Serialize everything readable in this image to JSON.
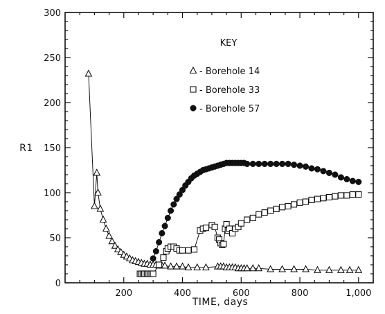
{
  "chart_data": {
    "type": "scatter",
    "title": "",
    "xlabel": "TIME, days",
    "ylabel": "R1",
    "xlim": [
      0,
      1050
    ],
    "ylim": [
      0,
      300
    ],
    "x_ticks": [
      200,
      400,
      600,
      800,
      1000
    ],
    "x_tick_labels": [
      "200",
      "400",
      "600",
      "800",
      "1,000"
    ],
    "y_ticks": [
      0,
      50,
      100,
      150,
      200,
      250,
      300
    ],
    "y_tick_labels": [
      "0",
      "50",
      "100",
      "150",
      "200",
      "250",
      "300"
    ],
    "grid": false,
    "legend": {
      "title": "KEY",
      "position": "top-right",
      "entries": [
        "- Borehole  14",
        "- Borehole  33",
        "- Borehole  57"
      ]
    },
    "series": [
      {
        "name": "Borehole 14",
        "marker": "triangle-open",
        "points": [
          [
            80,
            232
          ],
          [
            100,
            85
          ],
          [
            108,
            122
          ],
          [
            112,
            100
          ],
          [
            120,
            82
          ],
          [
            130,
            70
          ],
          [
            140,
            60
          ],
          [
            150,
            52
          ],
          [
            160,
            46
          ],
          [
            170,
            41
          ],
          [
            180,
            37
          ],
          [
            190,
            34
          ],
          [
            200,
            31
          ],
          [
            210,
            29
          ],
          [
            220,
            27
          ],
          [
            230,
            25
          ],
          [
            240,
            24
          ],
          [
            250,
            23
          ],
          [
            260,
            22
          ],
          [
            270,
            21
          ],
          [
            280,
            21
          ],
          [
            290,
            20
          ],
          [
            300,
            20
          ],
          [
            310,
            20
          ],
          [
            320,
            19
          ],
          [
            330,
            19
          ],
          [
            340,
            19
          ],
          [
            360,
            18
          ],
          [
            380,
            18
          ],
          [
            400,
            18
          ],
          [
            420,
            17
          ],
          [
            450,
            17
          ],
          [
            480,
            17
          ],
          [
            520,
            18
          ],
          [
            530,
            18
          ],
          [
            540,
            18
          ],
          [
            550,
            17
          ],
          [
            560,
            17
          ],
          [
            570,
            17
          ],
          [
            580,
            17
          ],
          [
            590,
            16
          ],
          [
            600,
            16
          ],
          [
            610,
            16
          ],
          [
            620,
            16
          ],
          [
            640,
            16
          ],
          [
            660,
            16
          ],
          [
            700,
            15
          ],
          [
            740,
            15
          ],
          [
            780,
            15
          ],
          [
            820,
            15
          ],
          [
            860,
            14
          ],
          [
            900,
            14
          ],
          [
            940,
            14
          ],
          [
            970,
            14
          ],
          [
            1000,
            14
          ]
        ]
      },
      {
        "name": "Borehole 33",
        "marker": "square-open",
        "points": [
          [
            255,
            10
          ],
          [
            260,
            10
          ],
          [
            265,
            10
          ],
          [
            270,
            10
          ],
          [
            275,
            10
          ],
          [
            280,
            10
          ],
          [
            285,
            10
          ],
          [
            290,
            10
          ],
          [
            295,
            10
          ],
          [
            300,
            10
          ],
          [
            320,
            20
          ],
          [
            335,
            28
          ],
          [
            345,
            35
          ],
          [
            350,
            38
          ],
          [
            360,
            40
          ],
          [
            370,
            40
          ],
          [
            380,
            38
          ],
          [
            390,
            36
          ],
          [
            400,
            36
          ],
          [
            420,
            36
          ],
          [
            440,
            37
          ],
          [
            460,
            58
          ],
          [
            470,
            60
          ],
          [
            480,
            61
          ],
          [
            500,
            64
          ],
          [
            510,
            62
          ],
          [
            520,
            50
          ],
          [
            525,
            48
          ],
          [
            530,
            44
          ],
          [
            535,
            42
          ],
          [
            540,
            43
          ],
          [
            545,
            60
          ],
          [
            550,
            65
          ],
          [
            555,
            58
          ],
          [
            560,
            60
          ],
          [
            570,
            55
          ],
          [
            580,
            60
          ],
          [
            590,
            62
          ],
          [
            600,
            66
          ],
          [
            620,
            70
          ],
          [
            640,
            72
          ],
          [
            660,
            76
          ],
          [
            680,
            78
          ],
          [
            700,
            80
          ],
          [
            720,
            82
          ],
          [
            740,
            84
          ],
          [
            760,
            85
          ],
          [
            780,
            87
          ],
          [
            800,
            89
          ],
          [
            820,
            90
          ],
          [
            840,
            92
          ],
          [
            860,
            93
          ],
          [
            880,
            94
          ],
          [
            900,
            95
          ],
          [
            920,
            96
          ],
          [
            940,
            97
          ],
          [
            960,
            97
          ],
          [
            980,
            98
          ],
          [
            1000,
            98
          ]
        ]
      },
      {
        "name": "Borehole 57",
        "marker": "circle-filled",
        "points": [
          [
            300,
            27
          ],
          [
            310,
            35
          ],
          [
            320,
            45
          ],
          [
            330,
            55
          ],
          [
            340,
            63
          ],
          [
            350,
            72
          ],
          [
            360,
            80
          ],
          [
            370,
            87
          ],
          [
            380,
            93
          ],
          [
            390,
            98
          ],
          [
            400,
            103
          ],
          [
            410,
            108
          ],
          [
            420,
            112
          ],
          [
            430,
            116
          ],
          [
            440,
            119
          ],
          [
            450,
            121
          ],
          [
            460,
            123
          ],
          [
            470,
            125
          ],
          [
            480,
            126
          ],
          [
            490,
            127
          ],
          [
            500,
            128
          ],
          [
            510,
            129
          ],
          [
            520,
            130
          ],
          [
            530,
            131
          ],
          [
            540,
            132
          ],
          [
            550,
            133
          ],
          [
            560,
            133
          ],
          [
            570,
            133
          ],
          [
            580,
            133
          ],
          [
            590,
            133
          ],
          [
            600,
            133
          ],
          [
            610,
            133
          ],
          [
            620,
            132
          ],
          [
            640,
            132
          ],
          [
            660,
            132
          ],
          [
            680,
            132
          ],
          [
            700,
            132
          ],
          [
            720,
            132
          ],
          [
            740,
            132
          ],
          [
            760,
            132
          ],
          [
            780,
            131
          ],
          [
            800,
            130
          ],
          [
            820,
            129
          ],
          [
            840,
            127
          ],
          [
            860,
            126
          ],
          [
            880,
            124
          ],
          [
            900,
            122
          ],
          [
            920,
            120
          ],
          [
            940,
            117
          ],
          [
            960,
            115
          ],
          [
            980,
            113
          ],
          [
            1000,
            112
          ]
        ]
      }
    ],
    "colors": {
      "axis": "#111111",
      "marker": "#111111",
      "background": "#ffffff"
    }
  }
}
